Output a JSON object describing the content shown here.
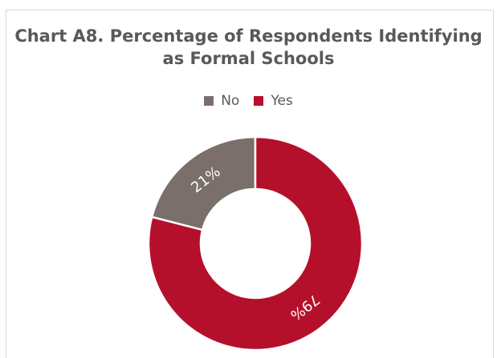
{
  "chart_data": {
    "type": "pie",
    "variant": "donut",
    "title": "Chart A8. Percentage of Respondents Identifying as Formal Schools",
    "title_lines": [
      "Chart A8. Percentage of Respondents Identifying",
      "as Formal Schools"
    ],
    "categories": [
      "No",
      "Yes"
    ],
    "values": [
      21,
      79
    ],
    "value_labels": [
      "21%",
      "79%"
    ],
    "colors": [
      "#7a6f6b",
      "#b5102b"
    ],
    "legend": "top-center",
    "start_angle": "12 o'clock",
    "direction": "counterclockwise-for-first-slice"
  }
}
